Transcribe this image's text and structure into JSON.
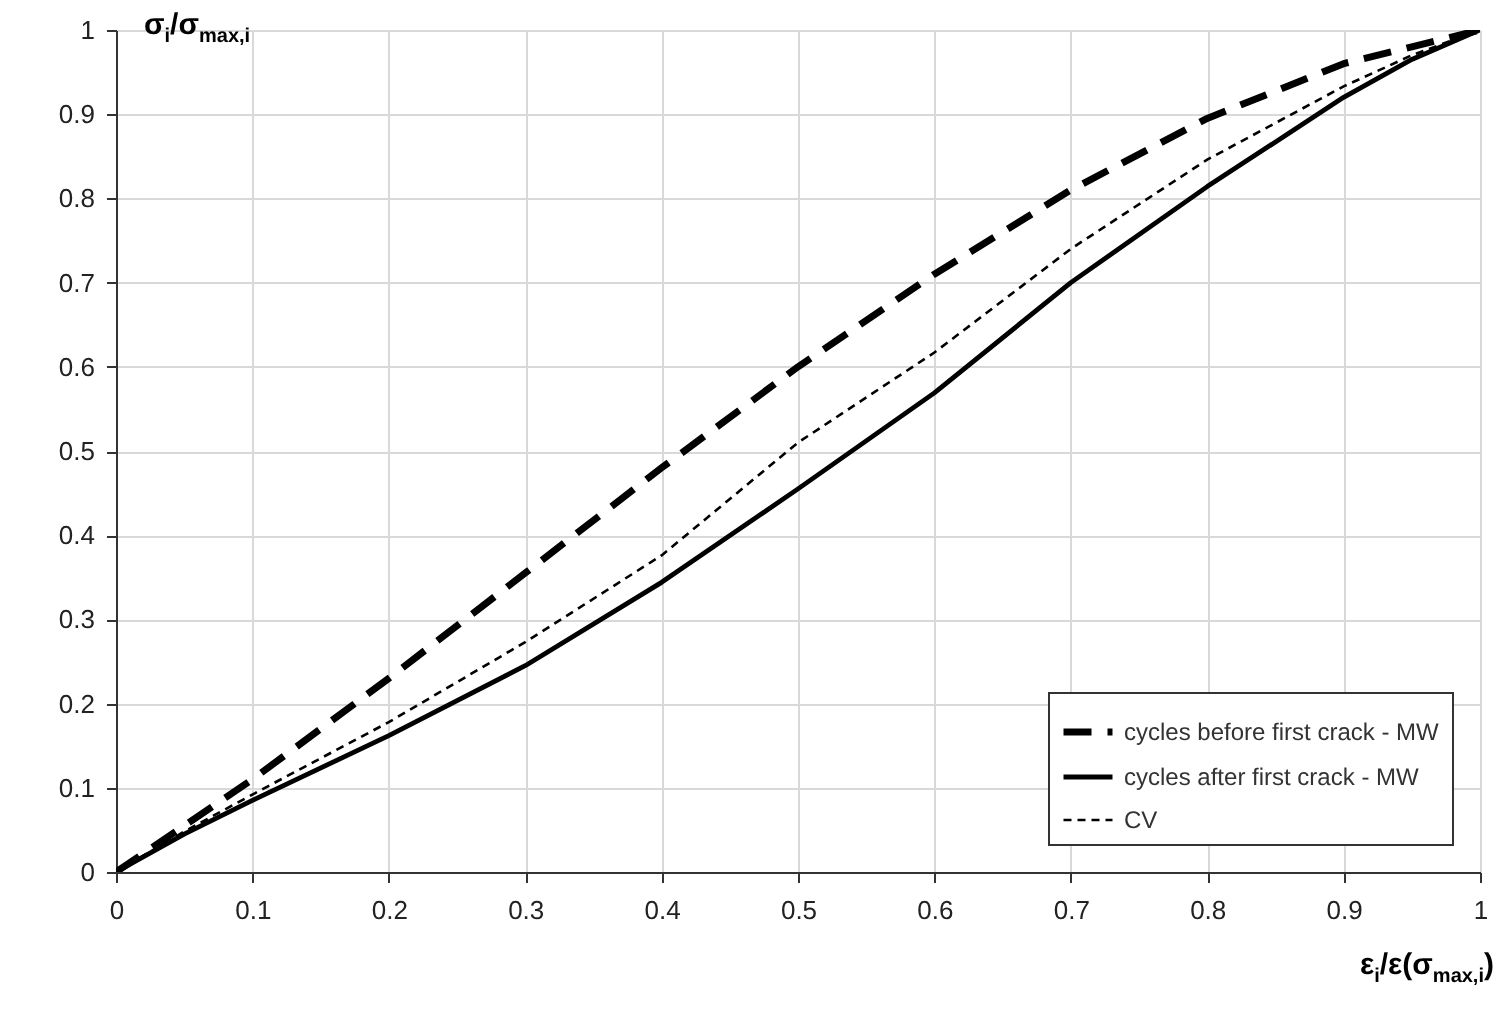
{
  "chart_data": {
    "type": "line",
    "xlabel": "ε$_{i}$/ε(σ$_{max,i}$)",
    "ylabel": "σ$_{i}$/σ$_{max,i}$",
    "x": [
      0,
      0.05,
      0.1,
      0.2,
      0.3,
      0.4,
      0.5,
      0.6,
      0.7,
      0.8,
      0.9,
      0.95,
      1
    ],
    "series": [
      {
        "name": "cycles before first crack - MW",
        "color": "#000000",
        "line_style": "dashed",
        "values": [
          0,
          0.055,
          0.11,
          0.23,
          0.355,
          0.48,
          0.6,
          0.71,
          0.81,
          0.895,
          0.96,
          0.98,
          1
        ]
      },
      {
        "name": "cycles after first crack - MW",
        "color": "#000000",
        "line_style": "solid",
        "values": [
          0,
          0.045,
          0.085,
          0.162,
          0.245,
          0.344,
          0.455,
          0.569,
          0.7,
          0.814,
          0.92,
          0.965,
          1
        ]
      },
      {
        "name": "CV",
        "color": "#000000",
        "line_style": "dotted",
        "values": [
          0,
          0.048,
          0.092,
          0.178,
          0.273,
          0.376,
          0.51,
          0.617,
          0.74,
          0.846,
          0.933,
          0.97,
          1
        ]
      }
    ],
    "xlim": [
      0,
      1
    ],
    "xticks": [
      0,
      0.1,
      0.2,
      0.3,
      0.4,
      0.5,
      0.6,
      0.7,
      0.8,
      0.9,
      1
    ],
    "ylim": [
      0,
      1
    ],
    "yticks": [
      0,
      0.1,
      0.2,
      0.3,
      0.4,
      0.5,
      0.6,
      0.7,
      0.8,
      0.9,
      1
    ],
    "grid": true,
    "legend": "bottom right",
    "marker": "none"
  }
}
